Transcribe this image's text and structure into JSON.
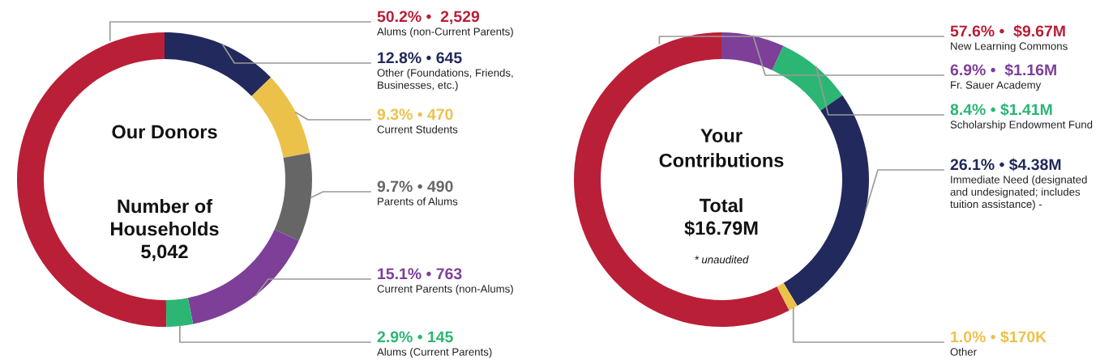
{
  "chart_data": [
    {
      "type": "donut",
      "title": "Our Donors",
      "annotations": [
        "Number of\nHouseholds\n5,042"
      ],
      "categories": [
        "Alums (non-Current Parents)",
        "Other (Foundations, Friends,\nBusinesses, etc.)",
        "Current Students",
        "Parents of Alums",
        "Current Parents (non-Alums)",
        "Alums (Current Parents)"
      ],
      "values": [
        50.2,
        12.8,
        9.3,
        9.7,
        15.1,
        2.9
      ],
      "value_labels": [
        "50.2% •  2,529",
        "12.8% • 645",
        "9.3% • 470",
        "9.7% • 490",
        "15.1% • 763",
        "2.9% • 145"
      ],
      "colors": [
        "#b91f37",
        "#22295c",
        "#ecc14a",
        "#666666",
        "#7d3f98",
        "#2bb673"
      ]
    },
    {
      "type": "donut",
      "title": "Your\nContributions",
      "annotations": [
        "Total\n$16.79M",
        "* unaudited"
      ],
      "categories": [
        "New Learning Commons",
        "Fr. Sauer Academy",
        "Scholarship Endowment Fund",
        "Immediate Need (designated\nand undesignated; includes\ntuition assistance) -",
        "Other"
      ],
      "values": [
        57.6,
        6.9,
        8.4,
        26.1,
        1.0
      ],
      "value_labels": [
        "57.6% •  $9.67M",
        "6.9% •  $1.16M",
        "8.4% • $1.41M",
        "26.1% • $4.38M",
        "1.0% • $170K"
      ],
      "colors": [
        "#b91f37",
        "#7d3f98",
        "#2bb673",
        "#22295c",
        "#ecc14a"
      ]
    }
  ]
}
